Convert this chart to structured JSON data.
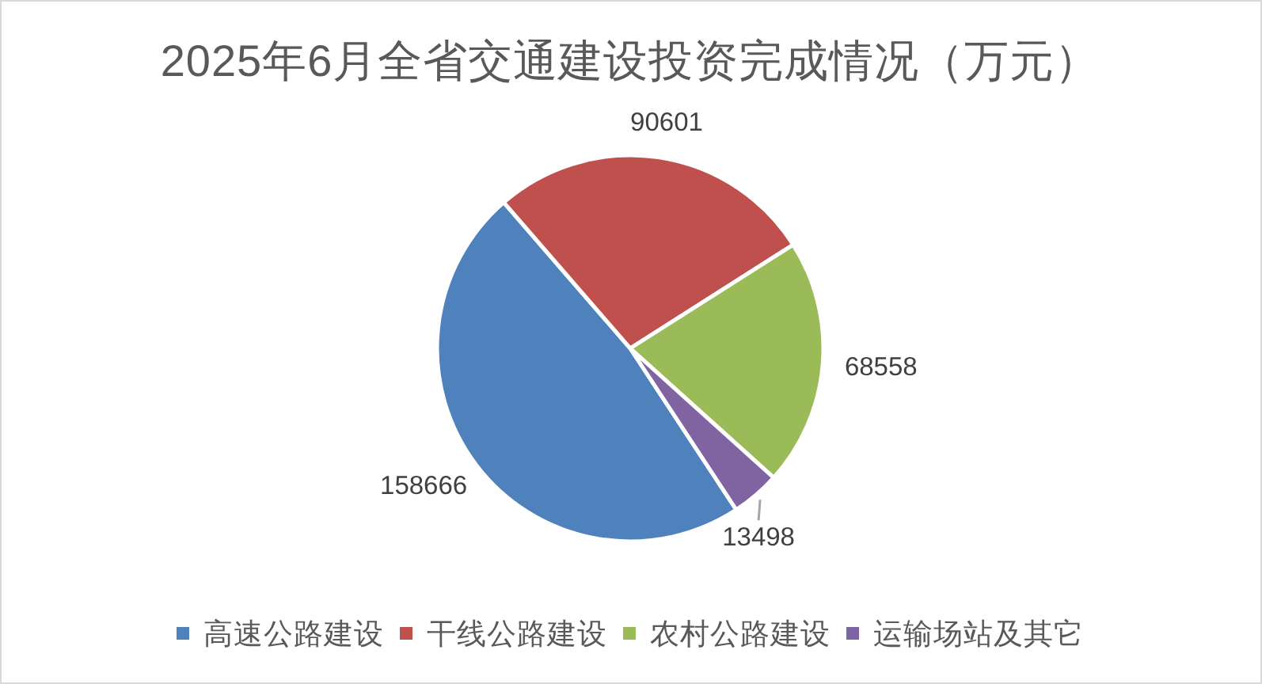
{
  "chart_data": {
    "type": "pie",
    "title": "2025年6月全省交通建设投资完成情况（万元）",
    "categories": [
      "高速公路建设",
      "干线公路建设",
      "农村公路建设",
      "运输场站及其它"
    ],
    "values": [
      158666,
      90601,
      68558,
      13498
    ],
    "colors": [
      "#4f81bd",
      "#c0504d",
      "#9bbb59",
      "#8064a2"
    ],
    "data_labels": true,
    "legend": "bottom"
  }
}
